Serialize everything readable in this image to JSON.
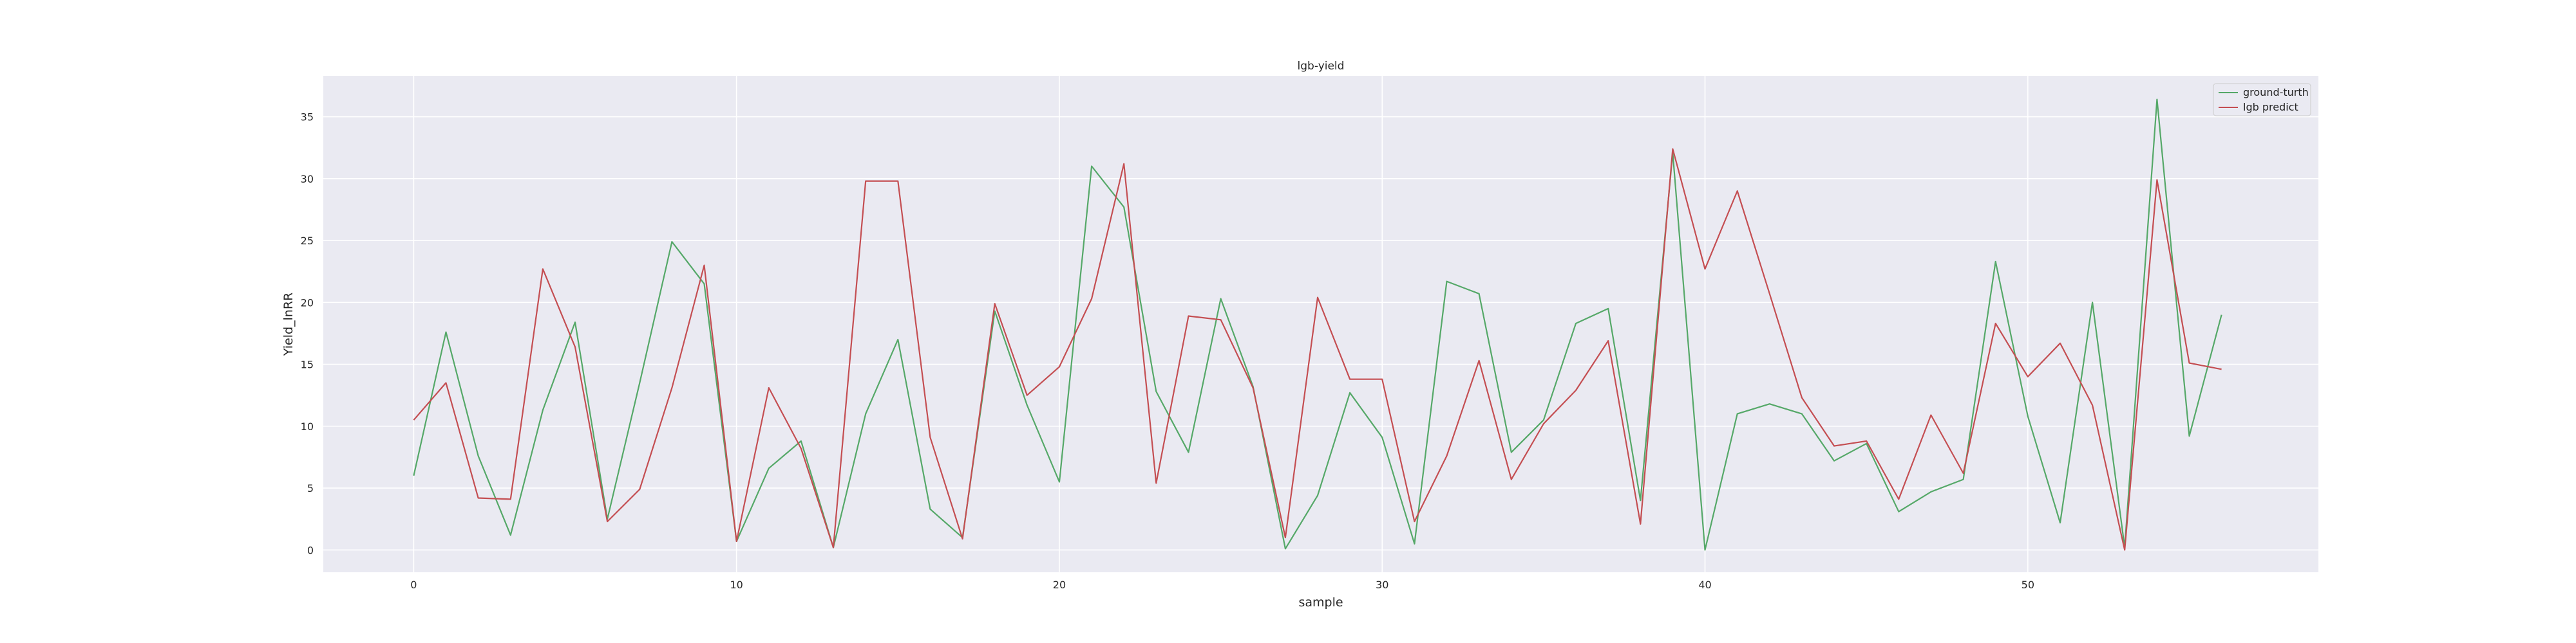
{
  "chart_data": {
    "type": "line",
    "title": "lgb-yield",
    "xlabel": "sample",
    "ylabel": "Yield_lnRR",
    "xlim": [
      -2.8,
      59.0
    ],
    "ylim": [
      -1.8,
      38.3
    ],
    "xticks": [
      0,
      10,
      20,
      30,
      40,
      50
    ],
    "yticks": [
      0,
      5,
      10,
      15,
      20,
      25,
      30,
      35
    ],
    "grid": true,
    "legend_position": "top-right",
    "x": [
      0,
      1,
      2,
      3,
      4,
      5,
      6,
      7,
      8,
      9,
      10,
      11,
      12,
      13,
      14,
      15,
      16,
      17,
      18,
      19,
      20,
      21,
      22,
      23,
      24,
      25,
      26,
      27,
      28,
      29,
      30,
      31,
      32,
      33,
      34,
      35,
      36,
      37,
      38,
      39,
      40,
      41,
      42,
      43,
      44,
      45,
      46,
      47,
      48,
      49,
      50,
      51,
      52,
      53,
      54,
      55,
      56
    ],
    "series": [
      {
        "name": "ground-turth",
        "color": "#55a868",
        "values": [
          6.0,
          17.6,
          7.6,
          1.2,
          11.3,
          18.4,
          2.5,
          13.5,
          24.9,
          21.5,
          0.7,
          6.6,
          8.8,
          0.2,
          11.0,
          17.0,
          3.3,
          1.0,
          19.3,
          11.7,
          5.5,
          31.0,
          27.7,
          12.8,
          7.9,
          20.3,
          13.2,
          0.1,
          4.4,
          12.7,
          9.1,
          0.5,
          21.7,
          20.7,
          7.9,
          10.5,
          18.3,
          19.5,
          4.0,
          32.1,
          0.0,
          11.0,
          11.8,
          11.0,
          7.2,
          8.6,
          3.1,
          4.7,
          5.7,
          23.3,
          10.8,
          2.2,
          20.0,
          0.2,
          36.4,
          9.2,
          19.0
        ]
      },
      {
        "name": "lgb predict",
        "color": "#c44e52",
        "values": [
          10.5,
          13.5,
          4.2,
          4.1,
          22.7,
          16.4,
          2.3,
          4.9,
          13.1,
          23.0,
          0.7,
          13.1,
          8.2,
          0.2,
          29.8,
          29.8,
          9.1,
          0.9,
          19.9,
          12.5,
          14.8,
          20.3,
          31.2,
          5.4,
          18.9,
          18.6,
          13.1,
          1.0,
          20.4,
          13.8,
          13.8,
          2.3,
          7.6,
          15.3,
          5.7,
          10.2,
          12.9,
          16.9,
          2.1,
          32.4,
          22.7,
          29.0,
          20.7,
          12.3,
          8.4,
          8.8,
          4.1,
          10.9,
          6.2,
          18.3,
          14.0,
          16.7,
          11.7,
          0.0,
          29.9,
          15.1,
          14.6
        ]
      }
    ]
  }
}
